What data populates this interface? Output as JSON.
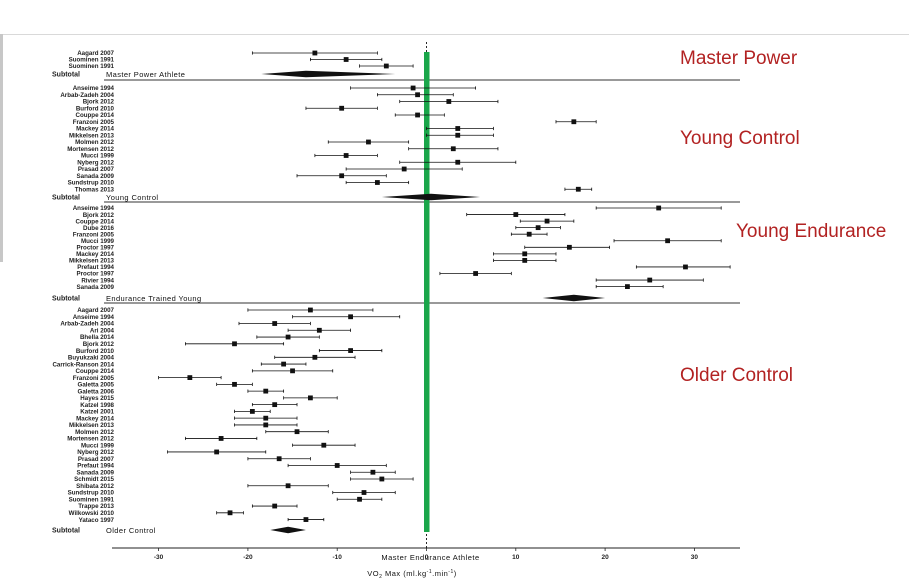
{
  "chart_data": {
    "type": "forest",
    "xlabel_prefix": "VO",
    "xlabel_sub": "2",
    "xlabel_main": " Max (ml.kg",
    "xlabel_sup1": "-1",
    "xlabel_mid": ".min",
    "xlabel_sup2": "-1",
    "xlabel_end": ")",
    "reference_label": "Master Endurance Athlete",
    "reference_value": 0,
    "xlim": [
      -37,
      35
    ],
    "xticks": [
      -30,
      -20,
      -10,
      0,
      10,
      20,
      30
    ],
    "category_labels": [
      "Master Power",
      "Young Control",
      "Young Endurance",
      "Older Control"
    ],
    "colors": {
      "reference_line": "#1aa64a",
      "category_text": "#b22222",
      "marks": "#111111"
    },
    "groups": [
      {
        "name": "Master Power",
        "subtotal_label": "Subtotal",
        "group_label": "Master Power Athlete",
        "subtotal": {
          "est": -13.5,
          "lo": -18.5,
          "hi": -3.5
        },
        "studies": [
          {
            "label": "Aagard 2007",
            "est": -12.5,
            "lo": -19.5,
            "hi": -5.5
          },
          {
            "label": "Suominen 1991",
            "est": -9,
            "lo": -13,
            "hi": -5
          },
          {
            "label": "Suominen 1991",
            "est": -4.5,
            "lo": -7.5,
            "hi": -1.5
          }
        ]
      },
      {
        "name": "Young Control",
        "subtotal_label": "Subtotal",
        "group_label": "Young Control",
        "subtotal": {
          "est": 0.5,
          "lo": -5,
          "hi": 6
        },
        "studies": [
          {
            "label": "Anseime 1994",
            "est": -1.5,
            "lo": -8.5,
            "hi": 5.5
          },
          {
            "label": "Arbab-Zadeh 2004",
            "est": -1,
            "lo": -5.5,
            "hi": 3
          },
          {
            "label": "Bjork 2012",
            "est": 2.5,
            "lo": -3,
            "hi": 8
          },
          {
            "label": "Burford 2010",
            "est": -9.5,
            "lo": -13.5,
            "hi": -5.5
          },
          {
            "label": "Couppe 2014",
            "est": -1,
            "lo": -3.5,
            "hi": 2
          },
          {
            "label": "Franzoni 2005",
            "est": 16.5,
            "lo": 14.5,
            "hi": 19
          },
          {
            "label": "Mackey 2014",
            "est": 3.5,
            "lo": 0,
            "hi": 7.5
          },
          {
            "label": "Mikkelsen 2013",
            "est": 3.5,
            "lo": 0,
            "hi": 7.5
          },
          {
            "label": "Molmen 2012",
            "est": -6.5,
            "lo": -11,
            "hi": -2
          },
          {
            "label": "Mortensen 2012",
            "est": 3,
            "lo": -2,
            "hi": 8
          },
          {
            "label": "Mucci 1999",
            "est": -9,
            "lo": -12.5,
            "hi": -5.5
          },
          {
            "label": "Nyberg 2012",
            "est": 3.5,
            "lo": -3,
            "hi": 10
          },
          {
            "label": "Prasad 2007",
            "est": -2.5,
            "lo": -9,
            "hi": 4
          },
          {
            "label": "Sanada 2009",
            "est": -9.5,
            "lo": -14.5,
            "hi": -4.5
          },
          {
            "label": "Sundstrup 2010",
            "est": -5.5,
            "lo": -9,
            "hi": -2
          },
          {
            "label": "Thomas 2013",
            "est": 17,
            "lo": 15.5,
            "hi": 18.5
          }
        ]
      },
      {
        "name": "Young Endurance",
        "subtotal_label": "Subtotal",
        "group_label": "Endurance Trained Young",
        "subtotal": {
          "est": 16.5,
          "lo": 13,
          "hi": 20
        },
        "studies": [
          {
            "label": "Anseime 1994",
            "est": 26,
            "lo": 19,
            "hi": 33
          },
          {
            "label": "Bjork 2012",
            "est": 10,
            "lo": 4.5,
            "hi": 15.5
          },
          {
            "label": "Couppe 2014",
            "est": 13.5,
            "lo": 10.5,
            "hi": 16.5
          },
          {
            "label": "Dube 2016",
            "est": 12.5,
            "lo": 10,
            "hi": 15
          },
          {
            "label": "Franzoni 2005",
            "est": 11.5,
            "lo": 9.5,
            "hi": 13.5
          },
          {
            "label": "Mucci 1999",
            "est": 27,
            "lo": 21,
            "hi": 33
          },
          {
            "label": "Proctor 1997",
            "est": 16,
            "lo": 11,
            "hi": 20.5
          },
          {
            "label": "Mackey 2014",
            "est": 11,
            "lo": 7.5,
            "hi": 14.5
          },
          {
            "label": "Mikkelsen 2013",
            "est": 11,
            "lo": 7.5,
            "hi": 14.5
          },
          {
            "label": "Prefaut 1994",
            "est": 29,
            "lo": 23.5,
            "hi": 34
          },
          {
            "label": "Proctor 1997",
            "est": 5.5,
            "lo": 1.5,
            "hi": 9.5
          },
          {
            "label": "Rivier 1994",
            "est": 25,
            "lo": 19,
            "hi": 31
          },
          {
            "label": "Sanada 2009",
            "est": 22.5,
            "lo": 19,
            "hi": 26.5
          }
        ]
      },
      {
        "name": "Older Control",
        "subtotal_label": "Subtotal",
        "group_label": "Older Control",
        "subtotal": {
          "est": -15.5,
          "lo": -17.5,
          "hi": -13.5
        },
        "studies": [
          {
            "label": "Aagard 2007",
            "est": -13,
            "lo": -20,
            "hi": -6
          },
          {
            "label": "Anseime 1994",
            "est": -8.5,
            "lo": -15,
            "hi": -3
          },
          {
            "label": "Arbab-Zadeh 2004",
            "est": -17,
            "lo": -21,
            "hi": -13
          },
          {
            "label": "Ari 2004",
            "est": -12,
            "lo": -15.5,
            "hi": -8.5
          },
          {
            "label": "Bhella 2014",
            "est": -15.5,
            "lo": -19,
            "hi": -12
          },
          {
            "label": "Bjork 2012",
            "est": -21.5,
            "lo": -27,
            "hi": -16
          },
          {
            "label": "Burford 2010",
            "est": -8.5,
            "lo": -12,
            "hi": -5
          },
          {
            "label": "Buyukzaki 2004",
            "est": -12.5,
            "lo": -17,
            "hi": -8
          },
          {
            "label": "Carrick-Ranson 2014",
            "est": -16,
            "lo": -18.5,
            "hi": -13.5
          },
          {
            "label": "Couppe 2014",
            "est": -15,
            "lo": -19.5,
            "hi": -10.5
          },
          {
            "label": "Franzoni 2005",
            "est": -26.5,
            "lo": -30,
            "hi": -23
          },
          {
            "label": "Galetta 2005",
            "est": -21.5,
            "lo": -23.5,
            "hi": -19.5
          },
          {
            "label": "Galetta 2006",
            "est": -18,
            "lo": -20,
            "hi": -16
          },
          {
            "label": "Hayes 2015",
            "est": -13,
            "lo": -16,
            "hi": -10
          },
          {
            "label": "Katzel 1998",
            "est": -17,
            "lo": -19.5,
            "hi": -14.5
          },
          {
            "label": "Katzel 2001",
            "est": -19.5,
            "lo": -21.5,
            "hi": -17.5
          },
          {
            "label": "Mackey 2014",
            "est": -18,
            "lo": -21.5,
            "hi": -14.5
          },
          {
            "label": "Mikkelsen 2013",
            "est": -18,
            "lo": -21.5,
            "hi": -14.5
          },
          {
            "label": "Molmen 2012",
            "est": -14.5,
            "lo": -18,
            "hi": -11
          },
          {
            "label": "Mortensen 2012",
            "est": -23,
            "lo": -27,
            "hi": -19
          },
          {
            "label": "Mucci 1999",
            "est": -11.5,
            "lo": -15,
            "hi": -8
          },
          {
            "label": "Nyberg 2012",
            "est": -23.5,
            "lo": -29,
            "hi": -18
          },
          {
            "label": "Prasad 2007",
            "est": -16.5,
            "lo": -20,
            "hi": -13
          },
          {
            "label": "Prefaut 1994",
            "est": -10,
            "lo": -15.5,
            "hi": -4.5
          },
          {
            "label": "Sanada 2009",
            "est": -6,
            "lo": -8.5,
            "hi": -3.5
          },
          {
            "label": "Schmidt 2015",
            "est": -5,
            "lo": -8.5,
            "hi": -1.5
          },
          {
            "label": "Shibata 2012",
            "est": -15.5,
            "lo": -20,
            "hi": -11
          },
          {
            "label": "Sundstrup 2010",
            "est": -7,
            "lo": -10.5,
            "hi": -3.5
          },
          {
            "label": "Suominen 1991",
            "est": -7.5,
            "lo": -10,
            "hi": -5
          },
          {
            "label": "Trappe 2013",
            "est": -17,
            "lo": -19.5,
            "hi": -14.5
          },
          {
            "label": "Wilkowski 2010",
            "est": -22,
            "lo": -23.5,
            "hi": -20.5
          },
          {
            "label": "Yataco 1997",
            "est": -13.5,
            "lo": -15.5,
            "hi": -11.5
          }
        ]
      }
    ]
  }
}
